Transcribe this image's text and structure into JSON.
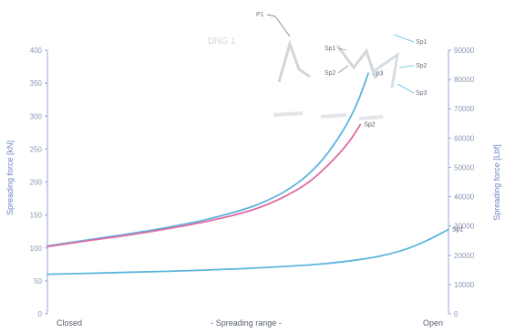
{
  "chart_data": {
    "type": "line",
    "xlabel": "- Spreading range -",
    "x_start_label": "Closed",
    "x_end_label": "Open",
    "x": [
      0,
      0.1,
      0.2,
      0.3,
      0.4,
      0.5,
      0.55,
      0.6,
      0.65,
      0.7,
      0.75,
      0.78,
      0.8,
      0.85,
      0.9,
      0.95,
      1.0
    ],
    "xlim": [
      0,
      1
    ],
    "ylabel_left": "Spreading force [kN]",
    "ylim_left": [
      0,
      400
    ],
    "yticks_left": [
      "0",
      "50",
      "100",
      "150",
      "200",
      "250",
      "300",
      "350",
      "400"
    ],
    "ylabel_right": "Spreading force [Lbf]",
    "ylim_right": [
      0,
      90000
    ],
    "yticks_right": [
      "0",
      "10000",
      "20000",
      "30000",
      "40000",
      "50000",
      "60000",
      "70000",
      "80000",
      "90000"
    ],
    "series": [
      {
        "name": "Sp3",
        "color": "#5bb5dc",
        "x": [
          0,
          0.1,
          0.2,
          0.3,
          0.4,
          0.5,
          0.55,
          0.6,
          0.65,
          0.7,
          0.75,
          0.78,
          0.8
        ],
        "values": [
          103,
          112,
          121,
          131,
          143,
          160,
          172,
          188,
          210,
          243,
          290,
          330,
          365
        ]
      },
      {
        "name": "Sp2",
        "color": "#e06aa4",
        "x": [
          0,
          0.1,
          0.2,
          0.3,
          0.4,
          0.5,
          0.55,
          0.6,
          0.65,
          0.7,
          0.75,
          0.78
        ],
        "values": [
          102,
          111,
          119,
          129,
          140,
          155,
          166,
          180,
          198,
          225,
          258,
          287
        ]
      },
      {
        "name": "Sp1",
        "color": "#5bb5dc",
        "x": [
          0,
          0.2,
          0.4,
          0.6,
          0.7,
          0.8,
          0.85,
          0.9,
          0.95,
          1.0
        ],
        "values": [
          60,
          63,
          66,
          72,
          76,
          84,
          90,
          99,
          112,
          128
        ]
      }
    ],
    "inset": {
      "pointer_label": "P1",
      "faint_text": "DNG 1",
      "labels_left": [
        "Sp1",
        "Sp2"
      ],
      "labels_right": [
        "Sp1",
        "Sp2",
        "Sp3"
      ]
    }
  }
}
